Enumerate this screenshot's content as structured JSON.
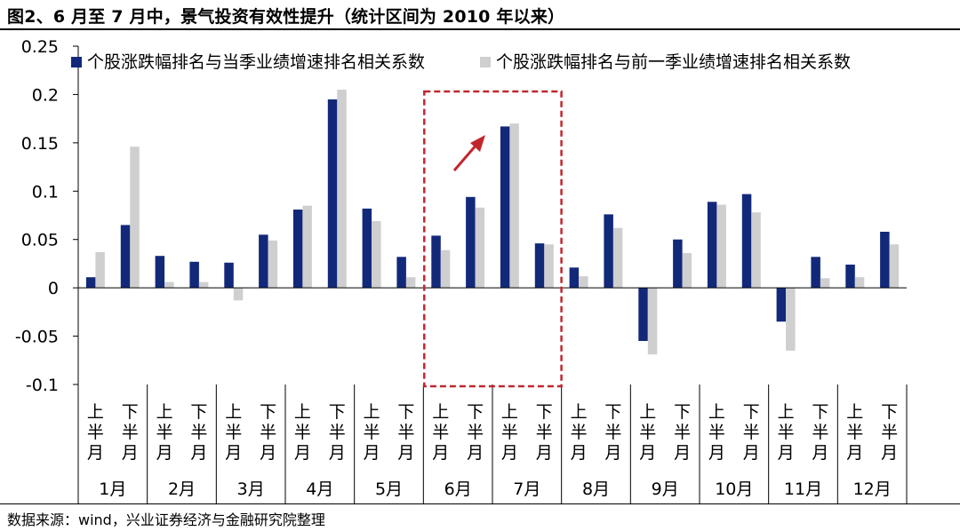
{
  "header": {
    "title": "图2、6 月至 7 月中，景气投资有效性提升（统计区间为 2010 年以来）"
  },
  "footer": {
    "source": "数据来源：wind，兴业证券经济与金融研究院整理"
  },
  "chart_data": {
    "type": "bar",
    "categories": [
      "1月上半月",
      "1月下半月",
      "2月上半月",
      "2月下半月",
      "3月上半月",
      "3月下半月",
      "4月上半月",
      "4月下半月",
      "5月上半月",
      "5月下半月",
      "6月上半月",
      "6月下半月",
      "7月上半月",
      "7月下半月",
      "8月上半月",
      "8月下半月",
      "9月上半月",
      "9月下半月",
      "10月上半月",
      "10月下半月",
      "11月上半月",
      "11月下半月",
      "12月上半月",
      "12月下半月"
    ],
    "half_labels": [
      "上\n半\n月",
      "下\n半\n月"
    ],
    "months": [
      "1月",
      "2月",
      "3月",
      "4月",
      "5月",
      "6月",
      "7月",
      "8月",
      "9月",
      "10月",
      "11月",
      "12月"
    ],
    "series": [
      {
        "name": "个股涨跌幅排名与当季业绩增速排名相关系数",
        "color": "#12297a",
        "values": [
          0.011,
          0.065,
          0.033,
          0.027,
          0.026,
          0.055,
          0.081,
          0.195,
          0.082,
          0.032,
          0.054,
          0.094,
          0.167,
          0.046,
          0.021,
          0.076,
          -0.055,
          0.05,
          0.089,
          0.097,
          -0.035,
          0.032,
          0.024,
          0.058
        ]
      },
      {
        "name": "个股涨跌幅排名与前一季业绩增速排名相关系数",
        "color": "#cfcfcf",
        "values": [
          0.037,
          0.146,
          0.006,
          0.006,
          -0.013,
          0.049,
          0.085,
          0.205,
          0.069,
          0.011,
          0.039,
          0.083,
          0.17,
          0.045,
          0.012,
          0.062,
          -0.069,
          0.036,
          0.086,
          0.078,
          -0.065,
          0.01,
          0.011,
          0.045
        ]
      }
    ],
    "yticks": [
      "0.25",
      "0.2",
      "0.15",
      "0.1",
      "0.05",
      "0",
      "-0.05",
      "-0.1"
    ],
    "ylim": [
      -0.1,
      0.25
    ],
    "legend_position": "top-right",
    "highlight_months": [
      "6月",
      "7月"
    ],
    "grid": false
  }
}
